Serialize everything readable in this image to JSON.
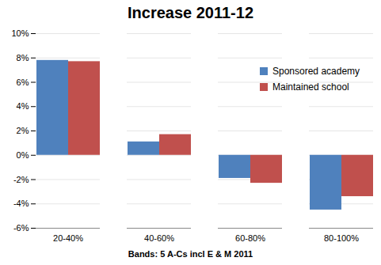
{
  "chart_data": {
    "type": "bar",
    "title": "Increase 2011-12",
    "xlabel": "Bands: 5 A-Cs incl E & M 2011",
    "categories": [
      "20-40%",
      "40-60%",
      "60-80%",
      "80-100%"
    ],
    "series": [
      {
        "name": "Sponsored academy",
        "color": "#4f81bd",
        "values": [
          7.8,
          1.1,
          -1.9,
          -4.5
        ]
      },
      {
        "name": "Maintained school",
        "color": "#c0504d",
        "values": [
          7.7,
          1.7,
          -2.3,
          -3.4
        ]
      }
    ],
    "ylim": [
      -6,
      10
    ],
    "yticks": [
      {
        "value": -6,
        "label": "-6%"
      },
      {
        "value": -4,
        "label": "-4%"
      },
      {
        "value": -2,
        "label": "-2%"
      },
      {
        "value": 0,
        "label": "0%"
      },
      {
        "value": 2,
        "label": "2%"
      },
      {
        "value": 4,
        "label": "4%"
      },
      {
        "value": 6,
        "label": "6%"
      },
      {
        "value": 8,
        "label": "8%"
      },
      {
        "value": 10,
        "label": "10%"
      }
    ],
    "grid": true,
    "legend": "right"
  }
}
